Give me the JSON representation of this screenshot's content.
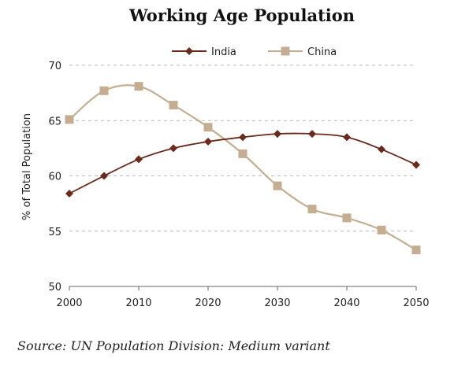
{
  "chart_data": {
    "type": "line",
    "title": "Working Age Population",
    "xlabel": "",
    "ylabel": "% of Total Population",
    "xlim": [
      2000,
      2050
    ],
    "ylim": [
      50,
      70
    ],
    "x_ticks": [
      2000,
      2010,
      2020,
      2030,
      2040,
      2050
    ],
    "y_ticks": [
      50,
      55,
      60,
      65,
      70
    ],
    "grid": "horizontal dashed",
    "legend_position": "top",
    "x": [
      2000,
      2005,
      2010,
      2015,
      2020,
      2025,
      2030,
      2035,
      2040,
      2045,
      2050
    ],
    "series": [
      {
        "name": "India",
        "color": "#6b2a1c",
        "marker": "diamond",
        "values": [
          58.4,
          60.0,
          61.5,
          62.5,
          63.1,
          63.5,
          63.8,
          63.8,
          63.5,
          62.4,
          61.0
        ]
      },
      {
        "name": "China",
        "color": "#c4ad90",
        "marker": "square",
        "values": [
          65.1,
          67.7,
          68.1,
          66.4,
          64.4,
          62.0,
          59.1,
          57.0,
          56.2,
          55.1,
          53.3
        ]
      }
    ],
    "source": "Source: UN Population Division: Medium variant"
  }
}
